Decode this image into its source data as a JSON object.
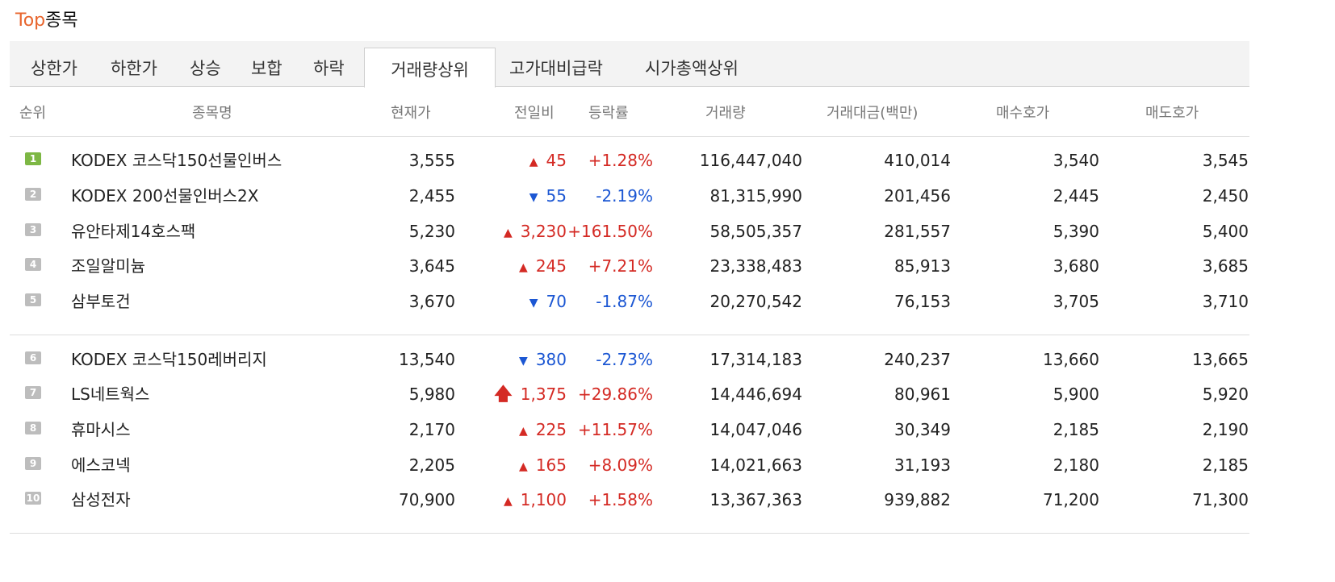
{
  "header": {
    "title_accent": "Top",
    "title_rest": "종목"
  },
  "tabs": [
    "상한가",
    "하한가",
    "상승",
    "보합",
    "하락",
    "거래량상위",
    "고가대비급락",
    "시가총액상위"
  ],
  "active_tab": "거래량상위",
  "columns": [
    "순위",
    "종목명",
    "현재가",
    "전일비",
    "등락률",
    "거래량",
    "거래대금(백만)",
    "매수호가",
    "매도호가"
  ],
  "colors": {
    "accent": "#e8652d",
    "up": "#d42a24",
    "down": "#1c57d3",
    "rank_top": "#7db744",
    "rank": "#bdbdbd"
  },
  "rows": [
    {
      "rank": "1",
      "name": "KODEX 코스닥150선물인버스",
      "price": "3,555",
      "dir": "up",
      "diff": "45",
      "rate": "+1.28%",
      "volume": "116,447,040",
      "amount": "410,014",
      "bid": "3,540",
      "ask": "3,545"
    },
    {
      "rank": "2",
      "name": "KODEX 200선물인버스2X",
      "price": "2,455",
      "dir": "down",
      "diff": "55",
      "rate": "-2.19%",
      "volume": "81,315,990",
      "amount": "201,456",
      "bid": "2,445",
      "ask": "2,450"
    },
    {
      "rank": "3",
      "name": "유안타제14호스팩",
      "price": "5,230",
      "dir": "up",
      "diff": "3,230",
      "rate": "+161.50%",
      "volume": "58,505,357",
      "amount": "281,557",
      "bid": "5,390",
      "ask": "5,400"
    },
    {
      "rank": "4",
      "name": "조일알미늄",
      "price": "3,645",
      "dir": "up",
      "diff": "245",
      "rate": "+7.21%",
      "volume": "23,338,483",
      "amount": "85,913",
      "bid": "3,680",
      "ask": "3,685"
    },
    {
      "rank": "5",
      "name": "삼부토건",
      "price": "3,670",
      "dir": "down",
      "diff": "70",
      "rate": "-1.87%",
      "volume": "20,270,542",
      "amount": "76,153",
      "bid": "3,705",
      "ask": "3,710"
    },
    {
      "rank": "6",
      "name": "KODEX 코스닥150레버리지",
      "price": "13,540",
      "dir": "down",
      "diff": "380",
      "rate": "-2.73%",
      "volume": "17,314,183",
      "amount": "240,237",
      "bid": "13,660",
      "ask": "13,665"
    },
    {
      "rank": "7",
      "name": "LS네트웍스",
      "price": "5,980",
      "dir": "limit-up",
      "diff": "1,375",
      "rate": "+29.86%",
      "volume": "14,446,694",
      "amount": "80,961",
      "bid": "5,900",
      "ask": "5,920"
    },
    {
      "rank": "8",
      "name": "휴마시스",
      "price": "2,170",
      "dir": "up",
      "diff": "225",
      "rate": "+11.57%",
      "volume": "14,047,046",
      "amount": "30,349",
      "bid": "2,185",
      "ask": "2,190"
    },
    {
      "rank": "9",
      "name": "에스코넥",
      "price": "2,205",
      "dir": "up",
      "diff": "165",
      "rate": "+8.09%",
      "volume": "14,021,663",
      "amount": "31,193",
      "bid": "2,180",
      "ask": "2,185"
    },
    {
      "rank": "10",
      "name": "삼성전자",
      "price": "70,900",
      "dir": "up",
      "diff": "1,100",
      "rate": "+1.58%",
      "volume": "13,367,363",
      "amount": "939,882",
      "bid": "71,200",
      "ask": "71,300"
    }
  ]
}
